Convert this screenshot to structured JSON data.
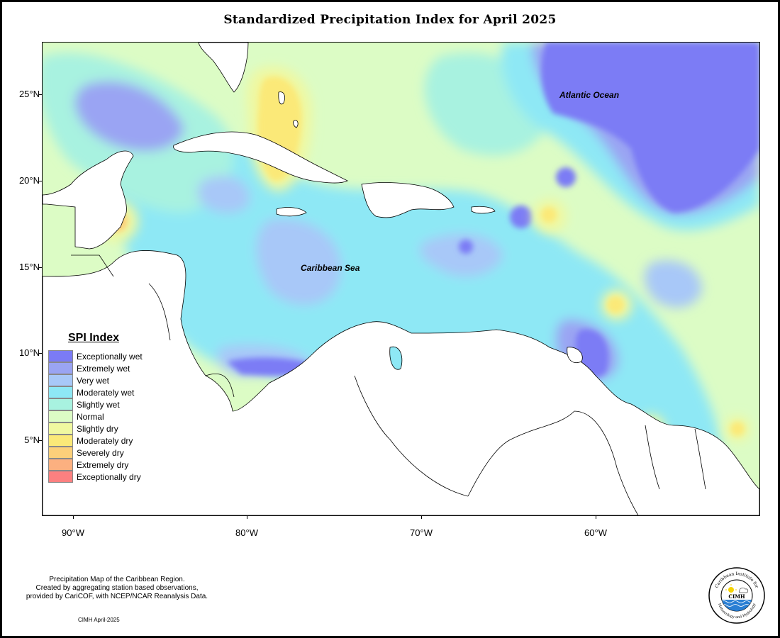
{
  "title": "Standardized Precipitation Index for April 2025",
  "axes": {
    "y_ticks": [
      "25°N",
      "20°N",
      "15°N",
      "10°N",
      "5°N"
    ],
    "x_ticks": [
      "90°W",
      "80°W",
      "70°W",
      "60°W"
    ]
  },
  "map_labels": {
    "atlantic": "Atlantic Ocean",
    "caribbean": "Caribbean Sea"
  },
  "legend": {
    "title": "SPI Index",
    "items": [
      {
        "label": "Exceptionally wet",
        "color": "#7b7bf5"
      },
      {
        "label": "Extremely wet",
        "color": "#9aa4f3"
      },
      {
        "label": "Very wet",
        "color": "#a8c8f8"
      },
      {
        "label": "Moderately wet",
        "color": "#8ee8f5"
      },
      {
        "label": "Slightly wet",
        "color": "#a8f2e0"
      },
      {
        "label": "Normal",
        "color": "#dcfcc5"
      },
      {
        "label": "Slightly dry",
        "color": "#f0f8a0"
      },
      {
        "label": "Moderately dry",
        "color": "#fbe978"
      },
      {
        "label": "Severely dry",
        "color": "#fcd07a"
      },
      {
        "label": "Extremely dry",
        "color": "#fcb080"
      },
      {
        "label": "Exceptionally dry",
        "color": "#fc8080"
      }
    ]
  },
  "footnote": {
    "line1": "Precipitation Map of the Caribbean Region.",
    "line2": "Created by aggregating station based observations,",
    "line3": "provided by CariCOF, with NCEP/NCAR Reanalysis Data."
  },
  "credit": "CIMH April-2025",
  "logo": {
    "text_center": "CIMH",
    "text_top": "Caribbean Institute for",
    "text_bottom": "Meteorology and Hydrology"
  }
}
